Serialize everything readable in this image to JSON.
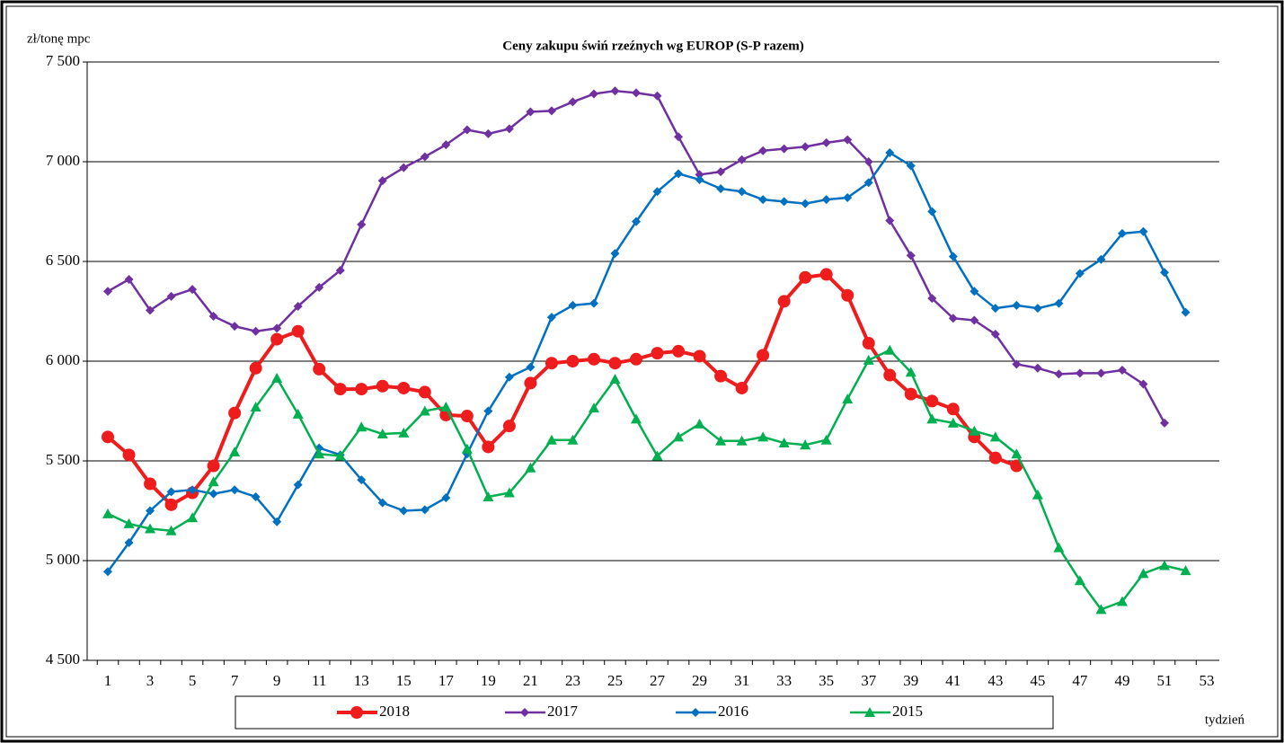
{
  "chart_data": {
    "type": "line",
    "title": "Ceny zakupu świń rzeźnych  wg EUROP (S-P razem)",
    "y_label": "zł/tonę  mpc",
    "x_label": "tydzień",
    "categories": [
      "1",
      null,
      "3",
      null,
      "5",
      null,
      "7",
      null,
      "9",
      null,
      "11",
      null,
      "13",
      null,
      "15",
      null,
      "17",
      null,
      "19",
      null,
      "21",
      null,
      "23",
      null,
      "25",
      null,
      "27",
      null,
      "29",
      null,
      "31",
      null,
      "33",
      null,
      "35",
      null,
      "37",
      null,
      "39",
      null,
      "41",
      null,
      "43",
      null,
      "45",
      null,
      "47",
      null,
      "49",
      null,
      "51",
      null,
      "53"
    ],
    "ylim": [
      4500,
      7500
    ],
    "yticks": [
      {
        "value": 4500,
        "label": "4 500"
      },
      {
        "value": 5000,
        "label": "5 000"
      },
      {
        "value": 5500,
        "label": "5 500"
      },
      {
        "value": 6000,
        "label": "6 000"
      },
      {
        "value": 6500,
        "label": "6 500"
      },
      {
        "value": 7000,
        "label": "7 000"
      },
      {
        "value": 7500,
        "label": "7 500"
      }
    ],
    "grid": true,
    "legend": "bottom",
    "series": [
      {
        "name": "2018",
        "color": "#ee1c1c",
        "marker": "circle",
        "values": [
          5620,
          5530,
          5385,
          5280,
          5340,
          5475,
          5740,
          5965,
          6110,
          6150,
          5960,
          5860,
          5860,
          5875,
          5865,
          5845,
          5730,
          5725,
          5570,
          5675,
          5890,
          5990,
          6000,
          6010,
          5990,
          6010,
          6040,
          6050,
          6025,
          5925,
          5865,
          6030,
          6300,
          6420,
          6435,
          6330,
          6090,
          5930,
          5835,
          5800,
          5760,
          5620,
          5515,
          5475,
          null,
          null,
          null,
          null,
          null,
          null,
          null,
          null,
          null
        ]
      },
      {
        "name": "2017",
        "color": "#7030a0",
        "marker": "diamond",
        "values": [
          6350,
          6410,
          6255,
          6325,
          6360,
          6225,
          6175,
          6150,
          6165,
          6275,
          6370,
          6455,
          6685,
          6905,
          6970,
          7025,
          7085,
          7160,
          7140,
          7165,
          7250,
          7255,
          7300,
          7340,
          7355,
          7345,
          7330,
          7125,
          6935,
          6950,
          7010,
          7055,
          7065,
          7075,
          7095,
          7110,
          7000,
          6705,
          6530,
          6315,
          6215,
          6205,
          6135,
          5985,
          5965,
          5935,
          5940,
          5940,
          5955,
          5885,
          5690,
          null,
          null
        ]
      },
      {
        "name": "2016",
        "color": "#0070c0",
        "marker": "diamond",
        "values": [
          4945,
          5090,
          5250,
          5345,
          5355,
          5335,
          5355,
          5320,
          5195,
          5380,
          5565,
          5530,
          5405,
          5290,
          5250,
          5255,
          5315,
          5535,
          5750,
          5920,
          5970,
          6220,
          6280,
          6290,
          6540,
          6700,
          6850,
          6940,
          6910,
          6865,
          6850,
          6810,
          6800,
          6790,
          6810,
          6820,
          6895,
          7045,
          6980,
          6750,
          6525,
          6350,
          6265,
          6280,
          6265,
          6290,
          6440,
          6510,
          6640,
          6650,
          6445,
          6245,
          null
        ]
      },
      {
        "name": "2015",
        "color": "#00b050",
        "marker": "triangle",
        "values": [
          5235,
          5185,
          5160,
          5150,
          5215,
          5395,
          5545,
          5770,
          5915,
          5735,
          5535,
          5525,
          5670,
          5635,
          5640,
          5750,
          5770,
          5560,
          5320,
          5340,
          5465,
          5605,
          5605,
          5765,
          5910,
          5710,
          5525,
          5620,
          5685,
          5600,
          5600,
          5620,
          5590,
          5580,
          5605,
          5810,
          6005,
          6055,
          5945,
          5710,
          5690,
          5650,
          5620,
          5535,
          5330,
          5065,
          4900,
          4755,
          4795,
          4935,
          4975,
          4950,
          null
        ]
      }
    ]
  }
}
